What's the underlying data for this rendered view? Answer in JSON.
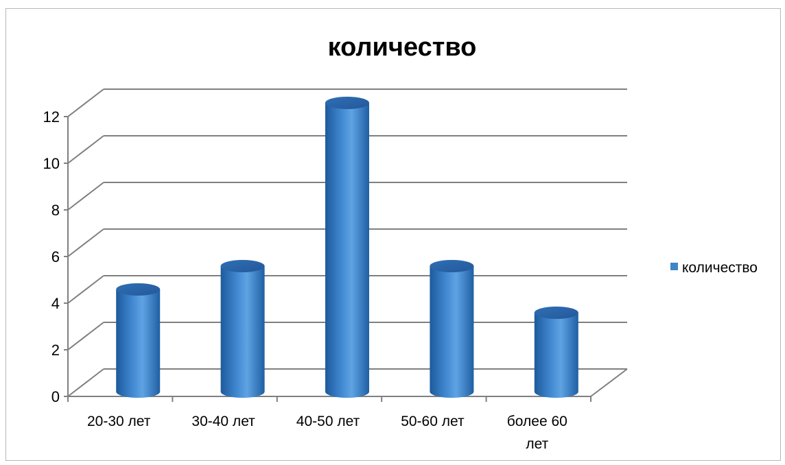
{
  "chart_data": {
    "type": "bar",
    "style": "3d-cylinder",
    "title": "количество",
    "xlabel": "",
    "ylabel": "",
    "categories": [
      "20-30 лет",
      "30-40 лет",
      "40-50 лет",
      "50-60 лет",
      "более 60 лет"
    ],
    "series": [
      {
        "name": "количество",
        "values": [
          4,
          5,
          12,
          5,
          3
        ],
        "color": "#3d85c6"
      }
    ],
    "ylim": [
      0,
      12
    ],
    "yticks": [
      "0",
      "2",
      "4",
      "6",
      "8",
      "10",
      "12"
    ],
    "grid": true,
    "legend": "right"
  }
}
